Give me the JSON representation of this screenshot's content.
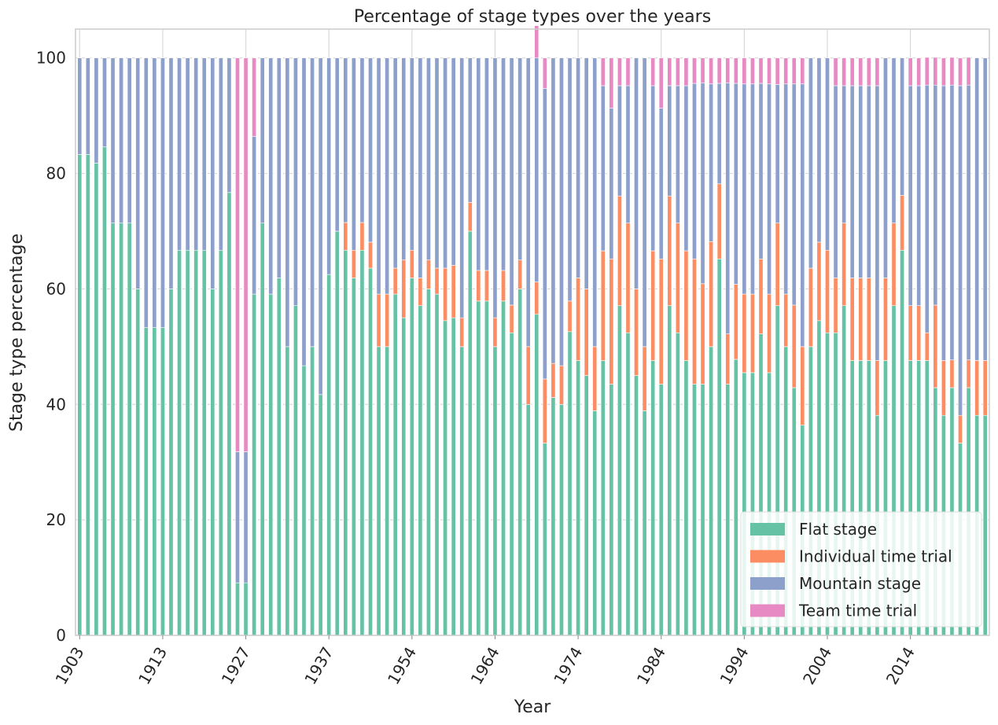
{
  "chart_data": {
    "type": "bar",
    "stacked": true,
    "title": "Percentage of stage types over the years",
    "xlabel": "Year",
    "ylabel": "Stage type percentage",
    "ylim": [
      0,
      105
    ],
    "yticks": [
      0,
      20,
      40,
      60,
      80,
      100
    ],
    "grid": true,
    "legend_position": "bottom-right",
    "categories": [
      1903,
      1904,
      1905,
      1906,
      1907,
      1908,
      1909,
      1910,
      1911,
      1912,
      1913,
      1914,
      1919,
      1920,
      1921,
      1922,
      1923,
      1924,
      1925,
      1926,
      1927,
      1928,
      1929,
      1930,
      1931,
      1932,
      1933,
      1934,
      1935,
      1936,
      1937,
      1938,
      1939,
      1947,
      1948,
      1949,
      1950,
      1951,
      1952,
      1953,
      1954,
      1955,
      1956,
      1957,
      1958,
      1959,
      1960,
      1961,
      1962,
      1963,
      1964,
      1965,
      1966,
      1967,
      1968,
      1969,
      1970,
      1971,
      1972,
      1973,
      1974,
      1975,
      1976,
      1977,
      1978,
      1979,
      1980,
      1981,
      1982,
      1983,
      1984,
      1985,
      1986,
      1987,
      1988,
      1989,
      1990,
      1991,
      1992,
      1993,
      1994,
      1995,
      1996,
      1997,
      1998,
      1999,
      2000,
      2001,
      2002,
      2003,
      2004,
      2005,
      2006,
      2007,
      2008,
      2009,
      2010,
      2011,
      2012,
      2013,
      2014,
      2015,
      2016,
      2017,
      2018,
      2019,
      2020,
      2021,
      2022,
      2023
    ],
    "xtick_labels": [
      "1903",
      "1913",
      "1927",
      "1937",
      "1954",
      "1964",
      "1974",
      "1984",
      "1994",
      "2004",
      "2014"
    ],
    "xtick_indices": [
      0,
      10,
      20,
      30,
      40,
      50,
      60,
      70,
      80,
      90,
      100
    ],
    "series": [
      {
        "name": "Flat stage",
        "color": "#66c2a5",
        "values": [
          83.3,
          83.3,
          81.8,
          84.6,
          71.4,
          71.4,
          71.4,
          60.0,
          53.3,
          53.3,
          53.3,
          60.0,
          66.7,
          66.7,
          66.7,
          66.7,
          60.0,
          66.7,
          76.7,
          9.1,
          9.1,
          59.1,
          71.4,
          59.1,
          61.9,
          50.0,
          57.1,
          46.7,
          50.0,
          41.7,
          62.5,
          70.0,
          66.7,
          61.9,
          66.7,
          63.6,
          50.0,
          50.0,
          59.1,
          55.0,
          61.9,
          57.1,
          60.0,
          59.1,
          54.5,
          55.0,
          50.0,
          70.0,
          57.9,
          57.9,
          50.0,
          57.9,
          52.4,
          60.0,
          40.0,
          55.6,
          33.3,
          41.2,
          40.0,
          52.6,
          47.6,
          45.0,
          38.9,
          47.6,
          43.5,
          57.1,
          52.4,
          45.0,
          38.9,
          47.6,
          43.5,
          57.1,
          52.4,
          47.6,
          43.5,
          43.5,
          50.0,
          65.2,
          43.5,
          47.8,
          45.5,
          45.5,
          52.2,
          45.5,
          57.1,
          50.0,
          42.9,
          36.4,
          50.0,
          54.5,
          52.4,
          52.4,
          57.1,
          47.6,
          47.6,
          47.6,
          38.1,
          47.6,
          57.1,
          66.7,
          47.6,
          47.6,
          47.6,
          42.9,
          38.1,
          42.9,
          33.3,
          42.9,
          38.1,
          38.1
        ]
      },
      {
        "name": "Individual time trial",
        "color": "#fc8d62",
        "values": [
          0,
          0,
          0,
          0,
          0,
          0,
          0,
          0,
          0,
          0,
          0,
          0,
          0,
          0,
          0,
          0,
          0,
          0,
          0,
          0,
          0,
          0,
          0,
          0,
          0,
          0,
          0,
          0,
          0,
          0,
          0,
          0,
          4.8,
          4.8,
          4.8,
          4.5,
          9.1,
          9.1,
          4.5,
          10.0,
          4.8,
          4.8,
          5.0,
          4.5,
          9.1,
          9.1,
          5.0,
          5.0,
          5.3,
          5.3,
          5.0,
          5.3,
          4.8,
          5.0,
          10.0,
          5.6,
          11.1,
          5.9,
          6.7,
          5.3,
          14.3,
          15.0,
          11.1,
          19.0,
          21.7,
          19.0,
          19.0,
          15.0,
          11.1,
          19.0,
          21.7,
          19.0,
          19.0,
          19.0,
          21.7,
          17.4,
          18.2,
          13.0,
          8.7,
          13.0,
          13.6,
          13.6,
          13.0,
          13.6,
          14.3,
          9.1,
          14.3,
          13.6,
          13.6,
          13.6,
          14.3,
          9.5,
          14.3,
          14.3,
          14.3,
          14.3,
          9.5,
          14.3,
          14.3,
          9.5,
          9.5,
          9.5,
          4.8,
          14.3,
          9.5,
          4.8,
          4.8,
          4.8,
          9.5,
          9.5
        ]
      },
      {
        "name": "Mountain stage",
        "color": "#8da0cb",
        "values": [
          16.7,
          16.7,
          18.2,
          15.4,
          28.6,
          28.6,
          28.6,
          40.0,
          46.7,
          46.7,
          46.7,
          40.0,
          33.3,
          33.3,
          33.3,
          33.3,
          40.0,
          33.3,
          23.3,
          22.7,
          22.7,
          27.3,
          28.6,
          40.9,
          38.1,
          50.0,
          42.9,
          53.3,
          50.0,
          58.3,
          37.5,
          30.0,
          28.5,
          33.3,
          28.5,
          31.9,
          40.9,
          40.9,
          36.4,
          35.0,
          33.3,
          38.1,
          35.0,
          36.4,
          36.4,
          35.9,
          45.0,
          25.0,
          36.8,
          36.8,
          45.0,
          36.8,
          42.8,
          35.0,
          50.0,
          38.8,
          50.3,
          52.9,
          53.3,
          42.1,
          38.1,
          40.0,
          50.0,
          28.6,
          26.1,
          19.1,
          23.8,
          40.0,
          50.0,
          28.6,
          26.1,
          19.1,
          23.8,
          28.6,
          30.4,
          34.8,
          27.3,
          17.4,
          43.5,
          34.8,
          36.4,
          36.4,
          30.4,
          36.4,
          24.0,
          36.4,
          38.3,
          45.5,
          36.4,
          31.9,
          33.3,
          33.3,
          23.8,
          33.3,
          33.3,
          33.3,
          47.6,
          38.1,
          28.6,
          23.8,
          38.1,
          38.1,
          42.9,
          38.1,
          47.6,
          47.6,
          57.1,
          47.6,
          52.4,
          52.4
        ]
      },
      {
        "name": "Team time trial",
        "color": "#e78ac3",
        "values": [
          0,
          0,
          0,
          0,
          0,
          0,
          0,
          0,
          0,
          0,
          0,
          0,
          0,
          0,
          0,
          0,
          0,
          0,
          0,
          68.2,
          68.2,
          13.6,
          0,
          0,
          0,
          0,
          0,
          0,
          0,
          0,
          0,
          0,
          0,
          0,
          0,
          0,
          0,
          0,
          0,
          0,
          0,
          0,
          0,
          0,
          0,
          0,
          0,
          0,
          0,
          0,
          0,
          0,
          0,
          0,
          0,
          5.6,
          5.3,
          0,
          0,
          0,
          0,
          0,
          0,
          4.8,
          8.7,
          4.8,
          4.8,
          0,
          0,
          4.8,
          8.7,
          4.8,
          4.8,
          4.8,
          4.4,
          4.3,
          4.5,
          4.4,
          4.3,
          4.4,
          4.5,
          4.5,
          4.4,
          4.5,
          4.6,
          4.5,
          4.5,
          4.5,
          0,
          0,
          0,
          4.8,
          4.8,
          4.8,
          4.8,
          4.8,
          4.8,
          0,
          0,
          0,
          4.8,
          4.8,
          4.8,
          4.8,
          4.8,
          4.8,
          4.8,
          4.8,
          0,
          0
        ]
      }
    ]
  }
}
